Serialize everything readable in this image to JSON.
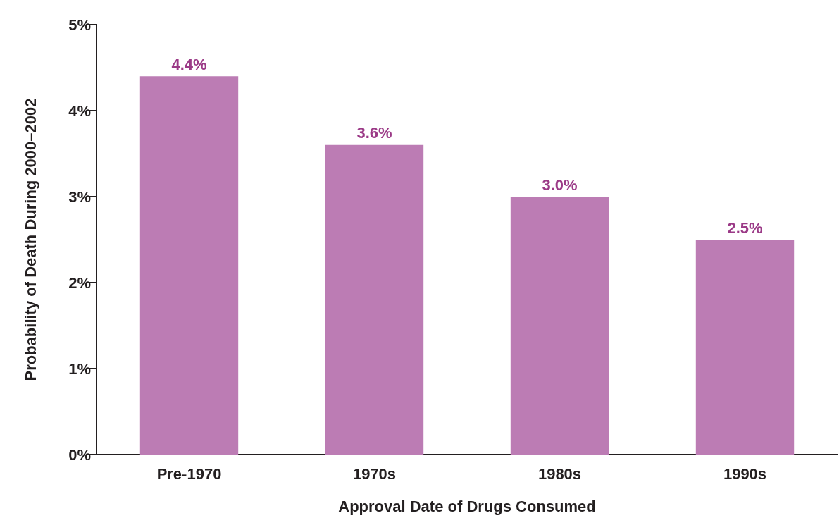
{
  "chart_data": {
    "type": "bar",
    "xlabel": "Approval Date of Drugs Consumed",
    "ylabel": "Probability of Death During 2000–2002",
    "categories": [
      "Pre-1970",
      "1970s",
      "1980s",
      "1990s"
    ],
    "values": [
      4.4,
      3.6,
      3.0,
      2.5
    ],
    "value_labels": [
      "4.4%",
      "3.6%",
      "3.0%",
      "2.5%"
    ],
    "color": "#bc7cb4",
    "ylim": [
      0,
      5
    ],
    "yticks": [
      {
        "value": 0,
        "label": "0%"
      },
      {
        "value": 1,
        "label": "1%"
      },
      {
        "value": 2,
        "label": "2%"
      },
      {
        "value": 3,
        "label": "3%"
      },
      {
        "value": 4,
        "label": "4%"
      },
      {
        "value": 5,
        "label": "5%"
      }
    ],
    "grid": false
  }
}
